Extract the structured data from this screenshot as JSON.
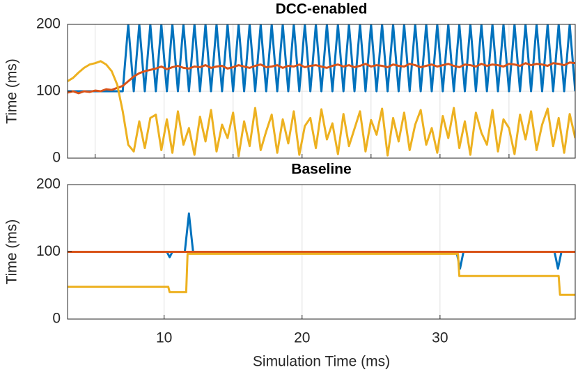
{
  "chart_data": [
    {
      "type": "line",
      "title": "DCC-enabled",
      "ylabel": "Time (ms)",
      "xlim": [
        3,
        39.8
      ],
      "ylim": [
        0,
        200
      ],
      "yticks": [
        0,
        100,
        200
      ],
      "xticks": [
        5,
        10,
        15,
        20,
        25,
        30,
        35
      ],
      "grid": true,
      "x": [
        3,
        3.4,
        3.8,
        4.2,
        4.6,
        5,
        5.4,
        5.8,
        6.2,
        6.6,
        7,
        7.4,
        7.8,
        8.2,
        8.6,
        9,
        9.4,
        9.8,
        10.2,
        10.6,
        11,
        11.4,
        11.8,
        12.2,
        12.6,
        13,
        13.4,
        13.8,
        14.2,
        14.6,
        15,
        15.4,
        15.8,
        16.2,
        16.6,
        17,
        17.4,
        17.8,
        18.2,
        18.6,
        19,
        19.4,
        19.8,
        20.2,
        20.6,
        21,
        21.4,
        21.8,
        22.2,
        22.6,
        23,
        23.4,
        23.8,
        24.2,
        24.6,
        25,
        25.4,
        25.8,
        26.2,
        26.6,
        27,
        27.4,
        27.8,
        28.2,
        28.6,
        29,
        29.4,
        29.8,
        30.2,
        30.6,
        31,
        31.4,
        31.8,
        32.2,
        32.6,
        33,
        33.4,
        33.8,
        34.2,
        34.6,
        35,
        35.4,
        35.8,
        36.2,
        36.6,
        37,
        37.4,
        37.8,
        38.2,
        38.6,
        39,
        39.4,
        39.8
      ],
      "series": [
        {
          "color": "#0072bd",
          "values": [
            100,
            100,
            100,
            100,
            100,
            100,
            100,
            100,
            100,
            100,
            100,
            200,
            100,
            200,
            100,
            200,
            100,
            200,
            100,
            200,
            100,
            200,
            100,
            200,
            100,
            200,
            100,
            200,
            100,
            200,
            100,
            200,
            100,
            200,
            100,
            200,
            100,
            200,
            100,
            200,
            100,
            200,
            100,
            200,
            100,
            200,
            100,
            200,
            100,
            200,
            100,
            200,
            100,
            200,
            100,
            200,
            100,
            200,
            100,
            200,
            100,
            200,
            100,
            200,
            100,
            200,
            100,
            200,
            100,
            200,
            100,
            200,
            100,
            200,
            100,
            200,
            100,
            200,
            100,
            200,
            100,
            200,
            100,
            200,
            100,
            200,
            100,
            200,
            100,
            200,
            100,
            200,
            100
          ]
        },
        {
          "color": "#d95319",
          "values": [
            98,
            100,
            97,
            100,
            99,
            101,
            100,
            103,
            102,
            105,
            108,
            115,
            122,
            127,
            130,
            132,
            134,
            137,
            133,
            136,
            138,
            135,
            134,
            137,
            136,
            139,
            135,
            137,
            138,
            134,
            136,
            139,
            137,
            135,
            138,
            140,
            136,
            137,
            139,
            135,
            138,
            137,
            140,
            136,
            138,
            139,
            137,
            135,
            138,
            140,
            137,
            139,
            136,
            138,
            141,
            137,
            139,
            138,
            136,
            140,
            138,
            137,
            141,
            139,
            136,
            138,
            140,
            137,
            139,
            141,
            138,
            136,
            140,
            139,
            137,
            141,
            138,
            140,
            139,
            137,
            141,
            140,
            138,
            142,
            139,
            141,
            140,
            138,
            142,
            141,
            139,
            143,
            142
          ]
        },
        {
          "color": "#edb120",
          "values": [
            115,
            120,
            128,
            135,
            140,
            142,
            145,
            140,
            130,
            110,
            70,
            20,
            10,
            55,
            15,
            60,
            65,
            12,
            58,
            8,
            70,
            20,
            45,
            5,
            62,
            25,
            72,
            10,
            50,
            30,
            68,
            3,
            55,
            18,
            75,
            12,
            40,
            65,
            8,
            58,
            22,
            70,
            5,
            48,
            60,
            15,
            73,
            28,
            52,
            6,
            66,
            18,
            44,
            70,
            10,
            57,
            35,
            74,
            4,
            60,
            25,
            68,
            12,
            50,
            72,
            20,
            45,
            8,
            63,
            30,
            75,
            15,
            55,
            5,
            68,
            38,
            20,
            72,
            10,
            58,
            45,
            6,
            65,
            28,
            70,
            12,
            50,
            74,
            18,
            60,
            8,
            66,
            30
          ]
        }
      ]
    },
    {
      "type": "line",
      "title": "Baseline",
      "ylabel": "Time (ms)",
      "xlabel": "Simulation Time (ms)",
      "xlim": [
        3,
        39.8
      ],
      "ylim": [
        0,
        200
      ],
      "yticks": [
        0,
        100,
        200
      ],
      "xticks": [
        10,
        20,
        30
      ],
      "grid": true,
      "series": [
        {
          "color": "#0072bd",
          "x": [
            3,
            10.2,
            10.4,
            10.6,
            11.5,
            11.8,
            12.1,
            31.2,
            31.45,
            31.7,
            38.3,
            38.55,
            38.8,
            39.8
          ],
          "values": [
            100,
            100,
            92,
            100,
            100,
            157,
            100,
            100,
            75,
            100,
            100,
            75,
            100,
            100
          ]
        },
        {
          "color": "#d95319",
          "x": [
            3,
            39.8
          ],
          "values": [
            100,
            100
          ]
        },
        {
          "color": "#edb120",
          "x": [
            3,
            10.3,
            10.4,
            11.6,
            11.7,
            31.3,
            31.4,
            38.6,
            38.7,
            39.8
          ],
          "values": [
            48,
            48,
            40,
            40,
            97,
            97,
            64,
            64,
            36,
            36
          ]
        }
      ]
    }
  ]
}
